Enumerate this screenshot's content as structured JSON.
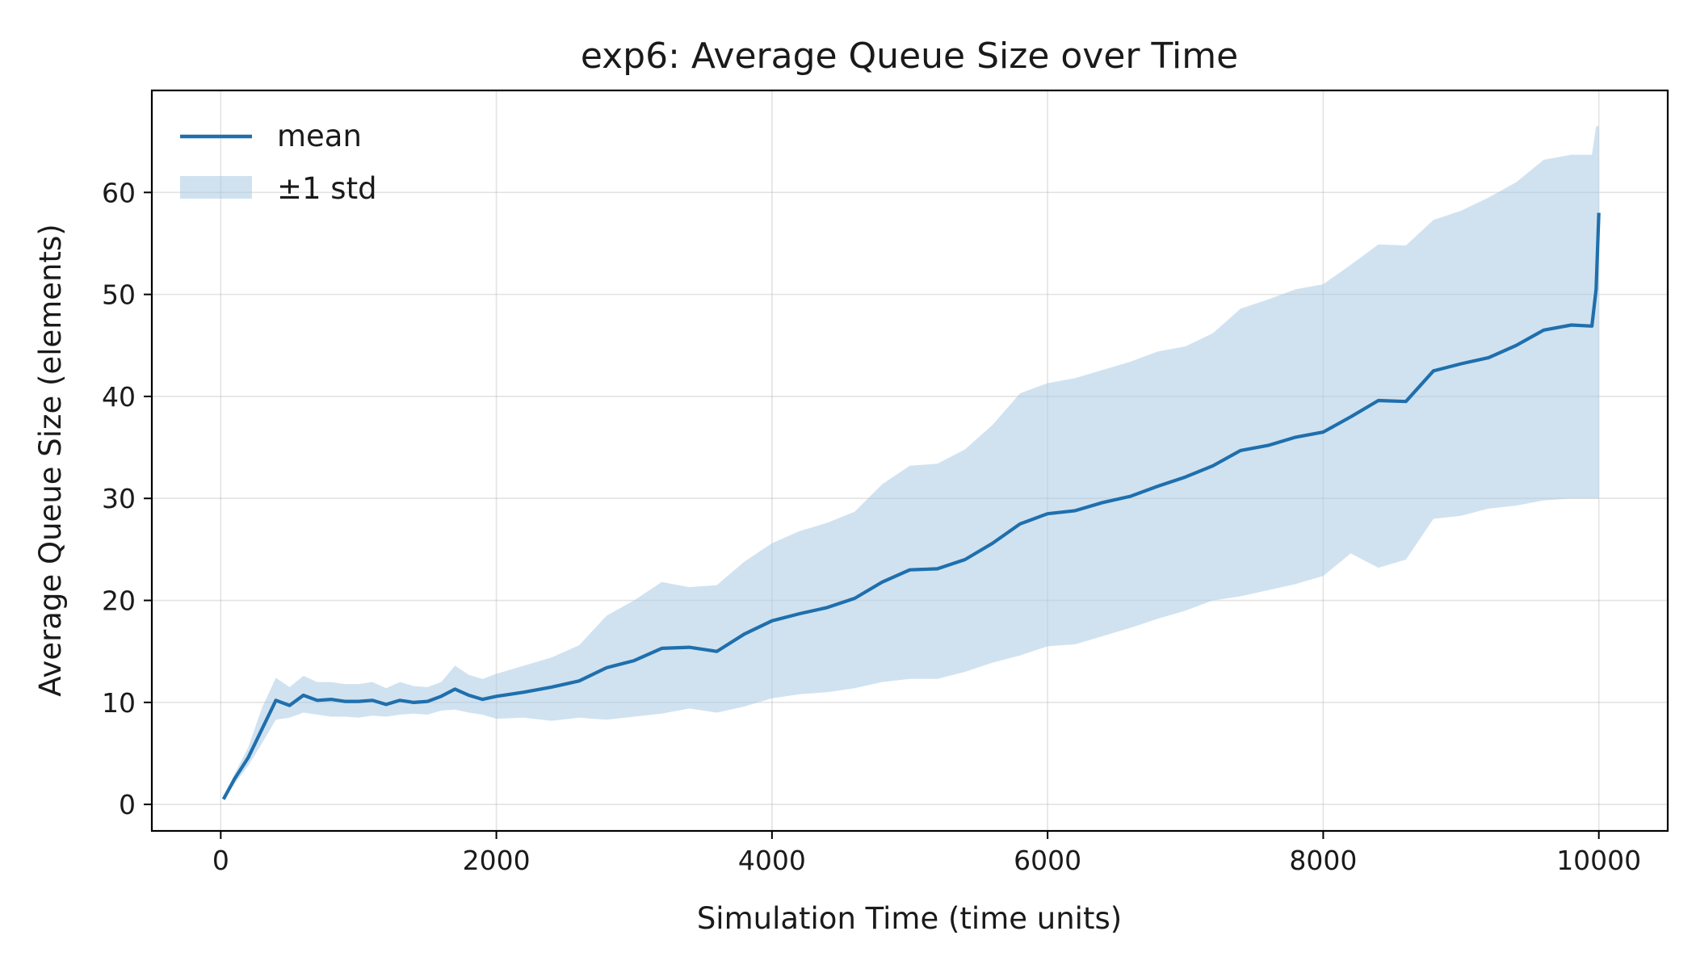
{
  "chart_data": {
    "type": "line",
    "title": "exp6: Average Queue Size over Time",
    "xlabel": "Simulation Time (time units)",
    "ylabel": "Average Queue Size (elements)",
    "xlim": [
      -500,
      10500
    ],
    "ylim": [
      -2.6,
      70
    ],
    "xticks": [
      0,
      2000,
      4000,
      6000,
      8000,
      10000
    ],
    "xtick_labels": [
      "0",
      "2000",
      "4000",
      "6000",
      "8000",
      "10000"
    ],
    "yticks": [
      0,
      10,
      20,
      30,
      40,
      50,
      60
    ],
    "ytick_labels": [
      "0",
      "10",
      "20",
      "30",
      "40",
      "50",
      "60"
    ],
    "grid": true,
    "legend_position": "top-left",
    "colors": {
      "line": "#1f6fad",
      "band": "#a9cbe3"
    },
    "series": [
      {
        "name": "mean",
        "kind": "line",
        "x": [
          20,
          100,
          200,
          300,
          400,
          500,
          600,
          700,
          800,
          900,
          1000,
          1100,
          1200,
          1300,
          1400,
          1500,
          1600,
          1700,
          1800,
          1900,
          2000,
          2200,
          2400,
          2600,
          2800,
          3000,
          3200,
          3400,
          3600,
          3800,
          4000,
          4200,
          4400,
          4600,
          4800,
          5000,
          5200,
          5400,
          5600,
          5800,
          6000,
          6200,
          6400,
          6600,
          6800,
          7000,
          7200,
          7400,
          7600,
          7800,
          8000,
          8200,
          8400,
          8600,
          8800,
          9000,
          9200,
          9400,
          9600,
          9800,
          9950,
          9980,
          10000
        ],
        "y": [
          0.5,
          2.5,
          4.6,
          7.4,
          10.2,
          9.7,
          10.7,
          10.2,
          10.3,
          10.1,
          10.1,
          10.2,
          9.8,
          10.2,
          10.0,
          10.1,
          10.6,
          11.3,
          10.7,
          10.3,
          10.6,
          11.0,
          11.5,
          12.1,
          13.4,
          14.1,
          15.3,
          15.4,
          15.0,
          16.7,
          18.0,
          18.7,
          19.3,
          20.2,
          21.8,
          23.0,
          23.1,
          24.0,
          25.6,
          27.5,
          28.5,
          28.8,
          29.6,
          30.2,
          31.2,
          32.1,
          33.2,
          34.7,
          35.2,
          36.0,
          36.5,
          38.0,
          39.6,
          39.5,
          42.5,
          43.2,
          43.8,
          45.0,
          46.5,
          47.0,
          46.9,
          50.5,
          58.0
        ]
      },
      {
        "name": "±1 std",
        "kind": "band",
        "x": [
          20,
          100,
          200,
          300,
          400,
          500,
          600,
          700,
          800,
          900,
          1000,
          1100,
          1200,
          1300,
          1400,
          1500,
          1600,
          1700,
          1800,
          1900,
          2000,
          2200,
          2400,
          2600,
          2800,
          3000,
          3200,
          3400,
          3600,
          3800,
          4000,
          4200,
          4400,
          4600,
          4800,
          5000,
          5200,
          5400,
          5600,
          5800,
          6000,
          6200,
          6400,
          6600,
          6800,
          7000,
          7200,
          7400,
          7600,
          7800,
          8000,
          8200,
          8400,
          8600,
          8800,
          9000,
          9200,
          9400,
          9600,
          9800,
          9950,
          9980,
          10000
        ],
        "lower": [
          0.4,
          2.0,
          3.8,
          6.0,
          8.3,
          8.5,
          9.0,
          8.8,
          8.6,
          8.6,
          8.5,
          8.7,
          8.6,
          8.8,
          8.9,
          8.8,
          9.2,
          9.3,
          9.0,
          8.8,
          8.4,
          8.5,
          8.2,
          8.5,
          8.3,
          8.6,
          8.9,
          9.4,
          9.0,
          9.6,
          10.4,
          10.8,
          11.0,
          11.4,
          12.0,
          12.3,
          12.3,
          13.0,
          13.9,
          14.6,
          15.5,
          15.7,
          16.5,
          17.3,
          18.2,
          19.0,
          20.0,
          20.4,
          21.0,
          21.6,
          22.4,
          24.6,
          23.2,
          24.0,
          28.0,
          28.3,
          29.0,
          29.3,
          29.8,
          30.0,
          30.0,
          30.0,
          30.0
        ]
      },
      {
        "name": "±1 std",
        "kind": "band",
        "x": [
          20,
          100,
          200,
          300,
          400,
          500,
          600,
          700,
          800,
          900,
          1000,
          1100,
          1200,
          1300,
          1400,
          1500,
          1600,
          1700,
          1800,
          1900,
          2000,
          2200,
          2400,
          2600,
          2800,
          3000,
          3200,
          3400,
          3600,
          3800,
          4000,
          4200,
          4400,
          4600,
          4800,
          5000,
          5200,
          5400,
          5600,
          5800,
          6000,
          6200,
          6400,
          6600,
          6800,
          7000,
          7200,
          7400,
          7600,
          7800,
          8000,
          8200,
          8400,
          8600,
          8800,
          9000,
          9200,
          9400,
          9600,
          9800,
          9950,
          9980,
          10000
        ],
        "upper": [
          0.6,
          3.0,
          5.6,
          9.5,
          12.4,
          11.5,
          12.6,
          12.0,
          12.0,
          11.8,
          11.8,
          12.0,
          11.4,
          12.0,
          11.6,
          11.5,
          12.0,
          13.6,
          12.7,
          12.3,
          12.8,
          13.6,
          14.4,
          15.6,
          18.5,
          20.0,
          21.8,
          21.3,
          21.5,
          23.8,
          25.6,
          26.8,
          27.6,
          28.7,
          31.4,
          33.2,
          33.4,
          34.8,
          37.2,
          40.3,
          41.3,
          41.8,
          42.6,
          43.4,
          44.4,
          44.9,
          46.2,
          48.6,
          49.5,
          50.5,
          51.0,
          52.9,
          54.9,
          54.8,
          57.3,
          58.2,
          59.5,
          61.0,
          63.2,
          63.7,
          63.7,
          66.5,
          66.5
        ]
      }
    ]
  }
}
